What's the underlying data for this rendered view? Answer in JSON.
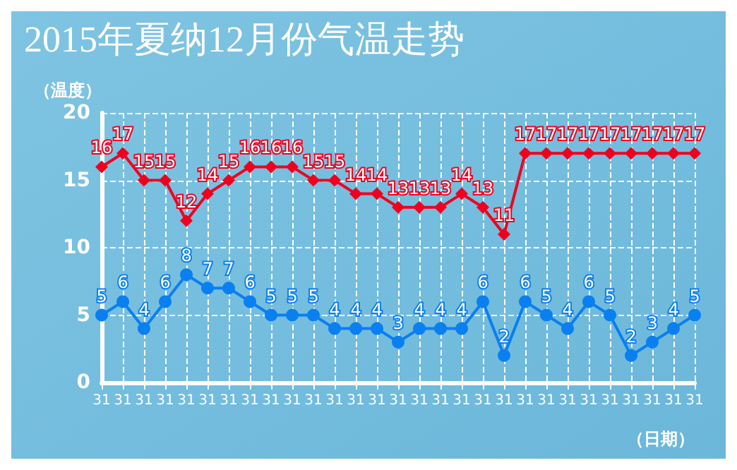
{
  "chart_data": {
    "type": "line",
    "title": "2015年夏纳12月份气温走势",
    "ylabel": "（温度）",
    "xlabel": "（日期）",
    "categories": [
      "31",
      "31",
      "31",
      "31",
      "31",
      "31",
      "31",
      "31",
      "31",
      "31",
      "31",
      "31",
      "31",
      "31",
      "31",
      "31",
      "31",
      "31",
      "31",
      "31",
      "31",
      "31",
      "31",
      "31",
      "31",
      "31",
      "31",
      "31",
      "31"
    ],
    "series": [
      {
        "color": "#f0001e",
        "marker": "diamond",
        "values": [
          16,
          17,
          15,
          15,
          12,
          14,
          15,
          16,
          16,
          16,
          15,
          15,
          14,
          14,
          13,
          13,
          13,
          14,
          13,
          11,
          17,
          17,
          17,
          17,
          17,
          17,
          17,
          17,
          17
        ]
      },
      {
        "color": "#0a7ff0",
        "marker": "circle",
        "values": [
          5,
          6,
          4,
          6,
          8,
          7,
          7,
          6,
          5,
          5,
          5,
          4,
          4,
          4,
          3,
          4,
          4,
          4,
          6,
          2,
          6,
          5,
          4,
          6,
          5,
          2,
          3,
          4,
          5
        ]
      }
    ],
    "ylim": [
      0,
      20
    ],
    "yticks": [
      0,
      5,
      10,
      15,
      20
    ],
    "grid": true,
    "data_labels": true,
    "line_style": "solid"
  }
}
